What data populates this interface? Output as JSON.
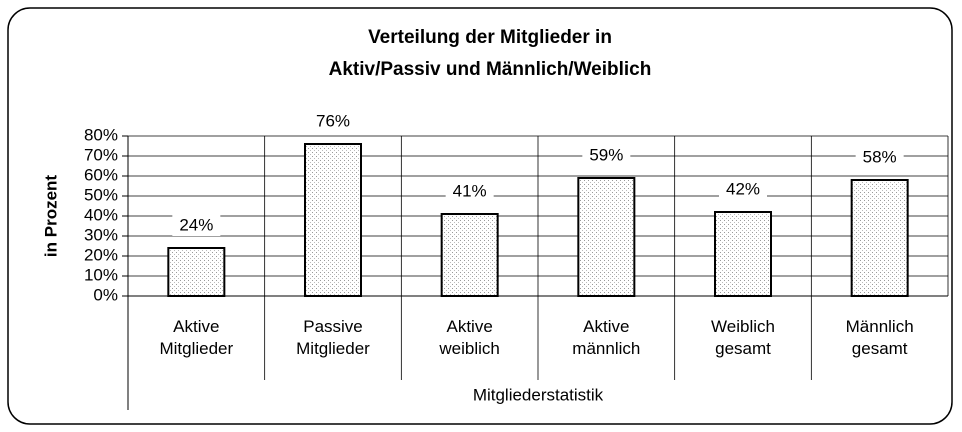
{
  "chart_data": {
    "type": "bar",
    "title": "Verteilung der Mitglieder in Aktiv/Passiv und Männlich/Weiblich",
    "xlabel": "Mitgliederstatistik",
    "ylabel": "in Prozent",
    "categories": [
      "Aktive Mitglieder",
      "Passive Mitglieder",
      "Aktive weiblich",
      "Aktive männlich",
      "Weiblich gesamt",
      "Männlich gesamt"
    ],
    "values": [
      24,
      76,
      41,
      59,
      42,
      58
    ],
    "value_labels": [
      "24%",
      "76%",
      "41%",
      "59%",
      "42%",
      "58%"
    ],
    "color": "#d9d9d9",
    "ylim": [
      0,
      80
    ],
    "yticks": [
      {
        "value": 0,
        "label": "0%"
      },
      {
        "value": 10,
        "label": "10%"
      },
      {
        "value": 20,
        "label": "20%"
      },
      {
        "value": 30,
        "label": "30%"
      },
      {
        "value": 40,
        "label": "40%"
      },
      {
        "value": 50,
        "label": "50%"
      },
      {
        "value": 60,
        "label": "60%"
      },
      {
        "value": 70,
        "label": "70%"
      },
      {
        "value": 80,
        "label": "80%"
      }
    ],
    "grid": true
  }
}
